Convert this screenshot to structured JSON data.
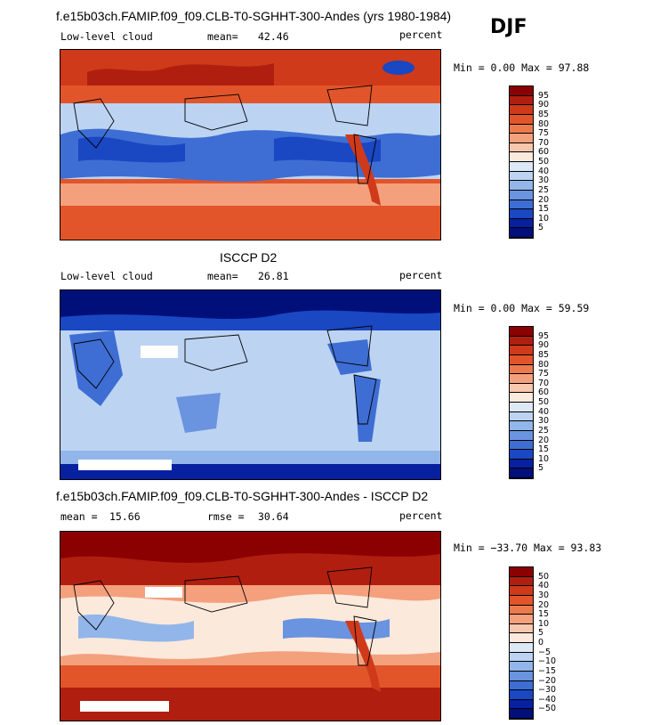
{
  "season": "DJF",
  "panels": [
    {
      "title": "f.e15b03ch.FAMIP.f09_f09.CLB-T0-SGHHT-300-Andes (yrs 1980-1984)",
      "left_label": "Low-level cloud",
      "mean_label": "mean=",
      "mean_value": "42.46",
      "rmse_label": "",
      "rmse_value": "",
      "units": "percent",
      "minmax": "Min =    0.00 Max =  97.88",
      "palette": "abs"
    },
    {
      "title": "ISCCP D2",
      "left_label": "Low-level cloud",
      "mean_label": "mean=",
      "mean_value": "26.81",
      "rmse_label": "",
      "rmse_value": "",
      "units": "percent",
      "minmax": "Min =    0.00 Max =  59.59",
      "palette": "abs"
    },
    {
      "title": "f.e15b03ch.FAMIP.f09_f09.CLB-T0-SGHHT-300-Andes - ISCCP D2",
      "left_label": "mean =",
      "mean_label": "",
      "mean_value": "15.66",
      "rmse_label": "rmse =",
      "rmse_value": "30.64",
      "units": "percent",
      "minmax": "Min = −33.70 Max =  93.83",
      "palette": "diff"
    }
  ],
  "colorbars": {
    "abs": {
      "labels": [
        "95",
        "90",
        "85",
        "80",
        "75",
        "70",
        "60",
        "50",
        "40",
        "30",
        "25",
        "20",
        "15",
        "10",
        "5"
      ],
      "colors": [
        "#8b0000",
        "#b01e10",
        "#cf3a1a",
        "#e2552a",
        "#ec7a4c",
        "#f4a07d",
        "#f8c7ad",
        "#fbe9dc",
        "#dde8f7",
        "#bcd3f2",
        "#93b6ea",
        "#6a93e0",
        "#3e6ed3",
        "#1a47c2",
        "#06209f",
        "#000f7a"
      ]
    },
    "diff": {
      "labels": [
        "50",
        "40",
        "30",
        "20",
        "15",
        "10",
        "5",
        "0",
        "−5",
        "−10",
        "−15",
        "−20",
        "−30",
        "−40",
        "−50"
      ],
      "colors": [
        "#8b0000",
        "#b01e10",
        "#cf3a1a",
        "#e2552a",
        "#ec7a4c",
        "#f4a07d",
        "#f8c7ad",
        "#fbe9dc",
        "#dde8f7",
        "#bcd3f2",
        "#93b6ea",
        "#6a93e0",
        "#3e6ed3",
        "#1a47c2",
        "#06209f",
        "#000f7a"
      ]
    }
  }
}
